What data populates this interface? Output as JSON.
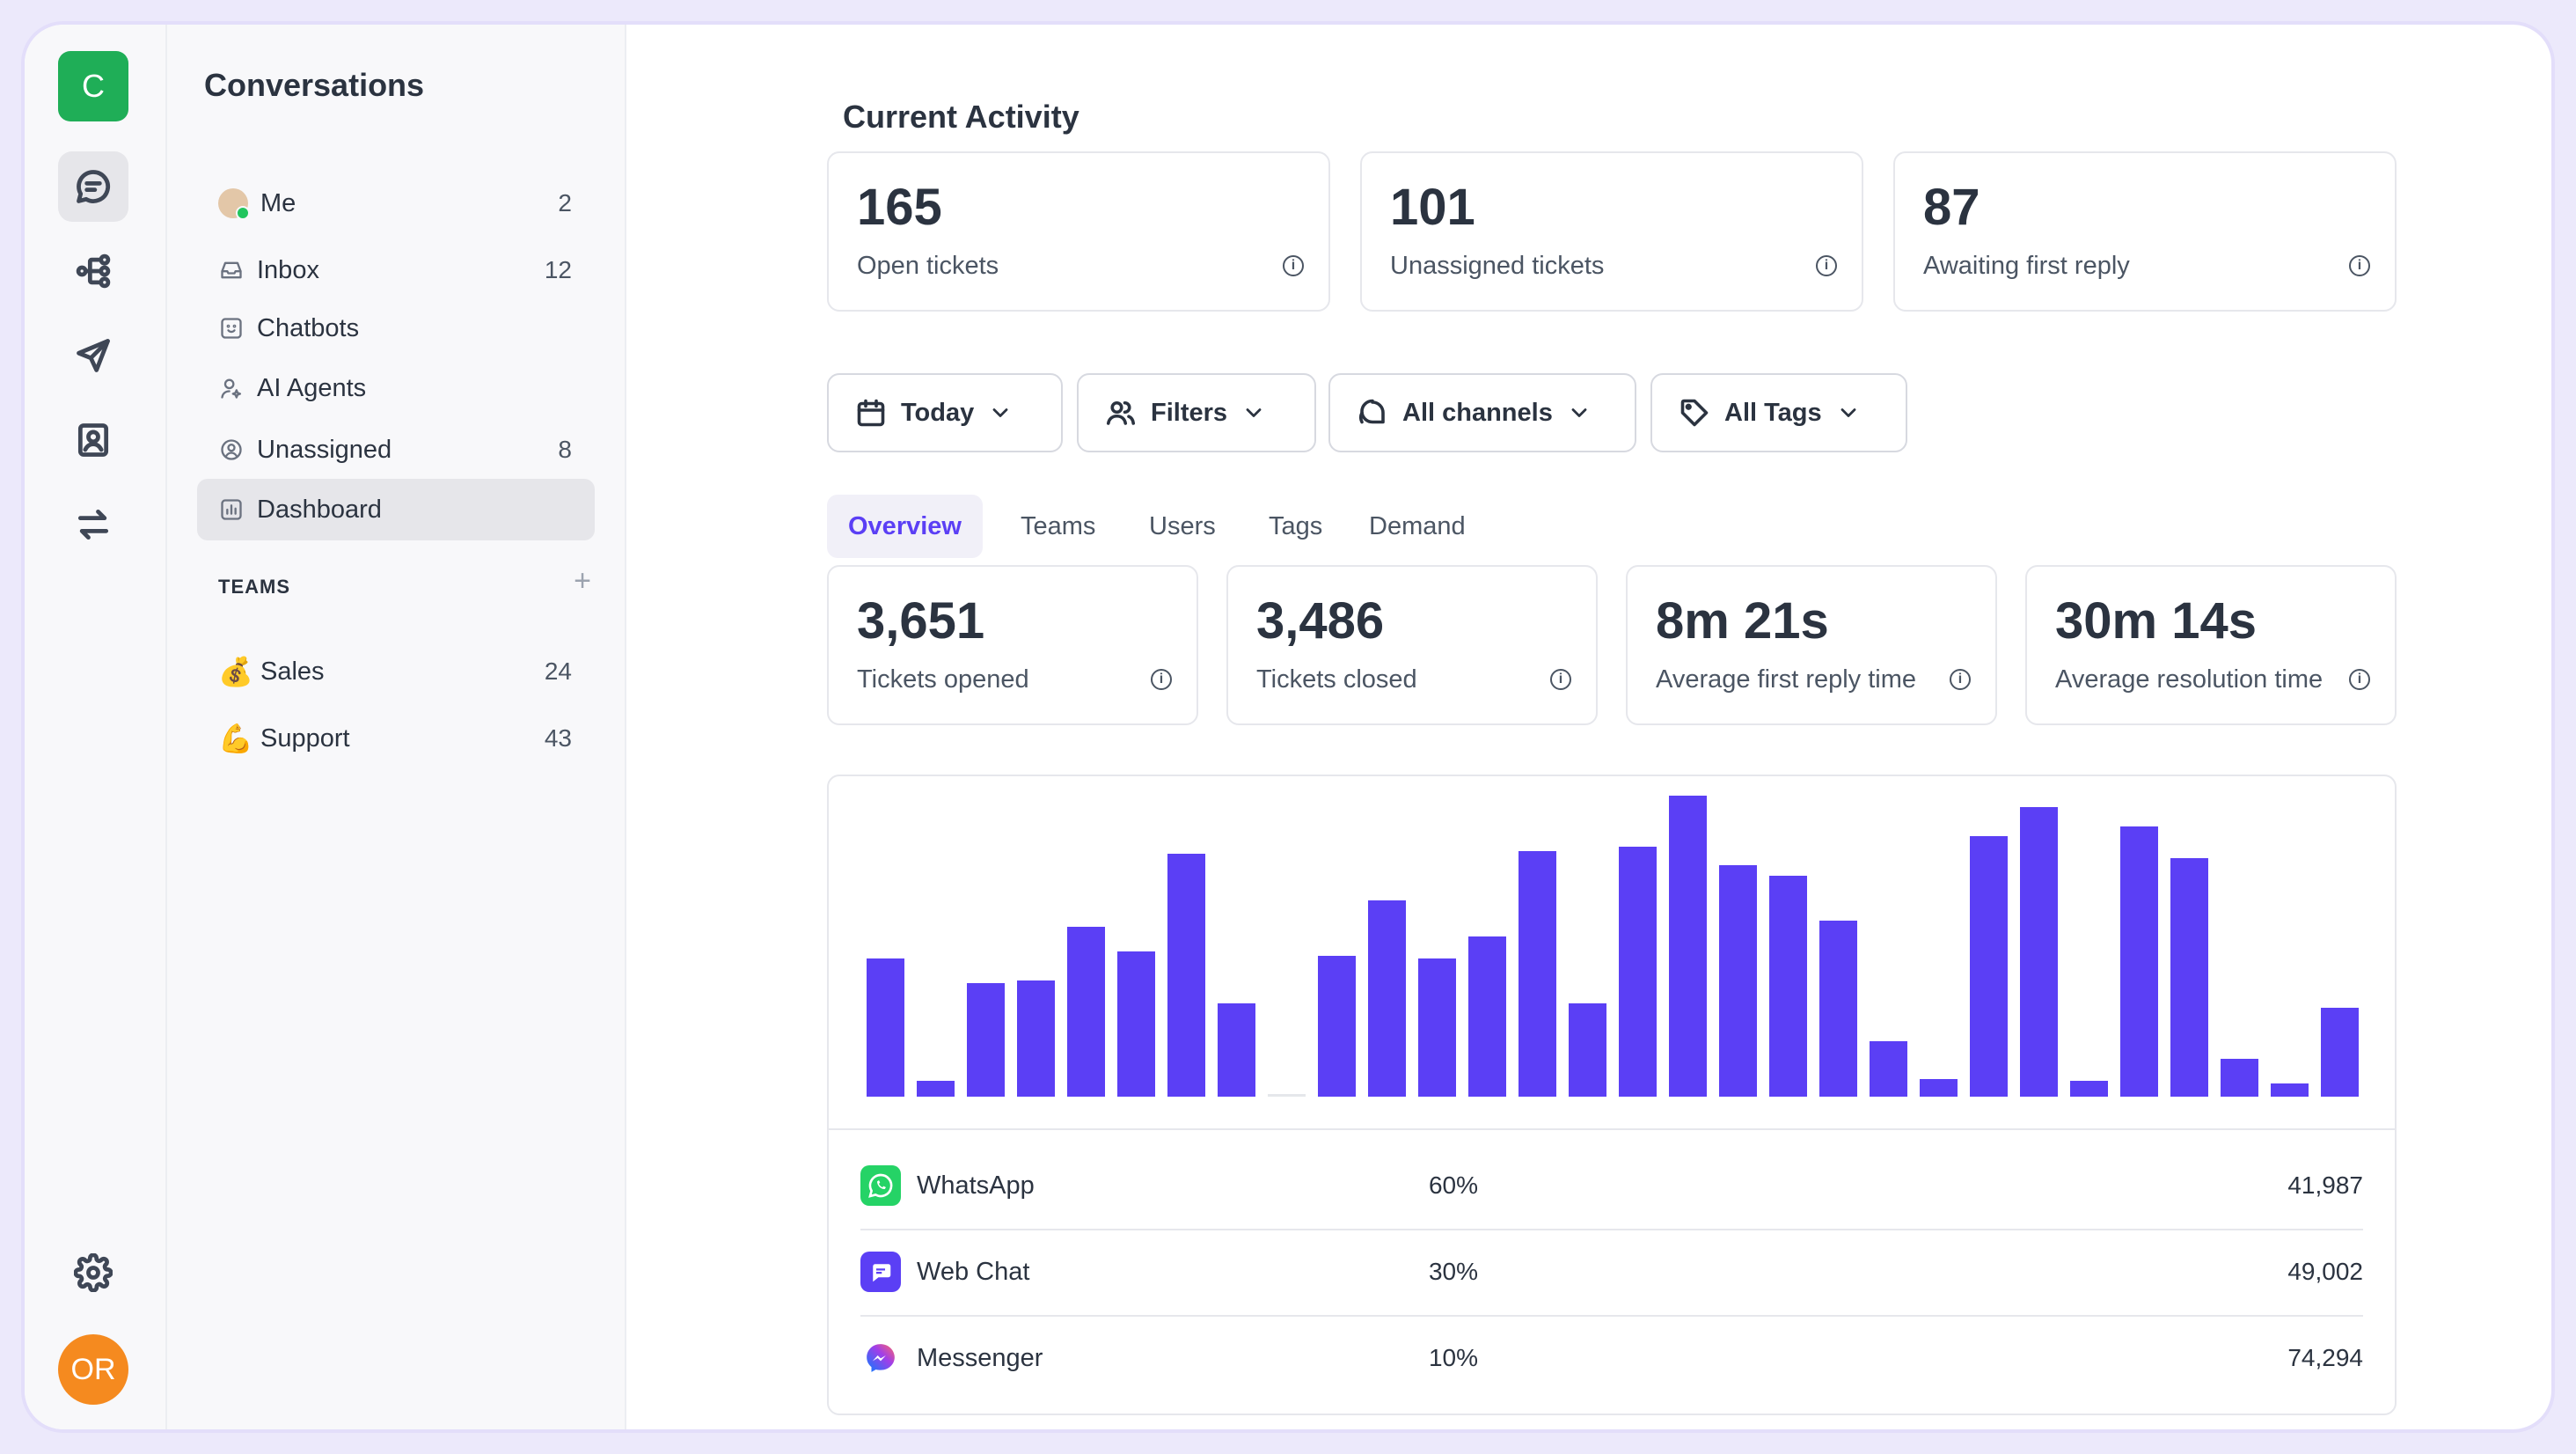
{
  "rail": {
    "logo_letter": "C",
    "user_initials": "OR"
  },
  "sidebar": {
    "title": "Conversations",
    "items": [
      {
        "label": "Me",
        "count": "2"
      },
      {
        "label": "Inbox",
        "count": "12"
      },
      {
        "label": "Chatbots",
        "count": ""
      },
      {
        "label": "AI Agents",
        "count": ""
      },
      {
        "label": "Unassigned",
        "count": "8"
      },
      {
        "label": "Dashboard",
        "count": ""
      }
    ],
    "teams_heading": "TEAMS",
    "teams": [
      {
        "emoji": "💰",
        "label": "Sales",
        "count": "24"
      },
      {
        "emoji": "💪",
        "label": "Support",
        "count": "43"
      }
    ]
  },
  "main": {
    "section_title": "Current Activity",
    "activity": [
      {
        "value": "165",
        "label": "Open tickets"
      },
      {
        "value": "101",
        "label": "Unassigned tickets"
      },
      {
        "value": "87",
        "label": "Awaiting first reply"
      }
    ],
    "filters": [
      {
        "label": "Today"
      },
      {
        "label": "Filters"
      },
      {
        "label": "All channels"
      },
      {
        "label": "All Tags"
      }
    ],
    "tabs": [
      {
        "label": "Overview"
      },
      {
        "label": "Teams"
      },
      {
        "label": "Users"
      },
      {
        "label": "Tags"
      },
      {
        "label": "Demand"
      }
    ],
    "metrics": [
      {
        "value": "3,651",
        "label": "Tickets opened"
      },
      {
        "value": "3,486",
        "label": "Tickets closed"
      },
      {
        "value": "8m 21s",
        "label": "Average first reply time"
      },
      {
        "value": "30m 14s",
        "label": "Average resolution time"
      }
    ],
    "channels": [
      {
        "name": "WhatsApp",
        "pct": "60%",
        "value": "41,987",
        "color": "#25d366"
      },
      {
        "name": "Web Chat",
        "pct": "30%",
        "value": "49,002",
        "color": "#5b3ff5"
      },
      {
        "name": "Messenger",
        "pct": "10%",
        "value": "74,294",
        "color": "#a23ee8"
      }
    ]
  },
  "colors": {
    "accent": "#5b3ff5",
    "brand": "#1fae57",
    "avatar": "#f58a1f"
  },
  "chart_data": {
    "type": "bar",
    "values": [
      62,
      7,
      51,
      52,
      76,
      65,
      109,
      42,
      1,
      63,
      88,
      62,
      72,
      110,
      42,
      112,
      135,
      104,
      99,
      79,
      25,
      8,
      117,
      130,
      7,
      121,
      107,
      17,
      6,
      40
    ],
    "ylim": [
      0,
      135
    ]
  }
}
